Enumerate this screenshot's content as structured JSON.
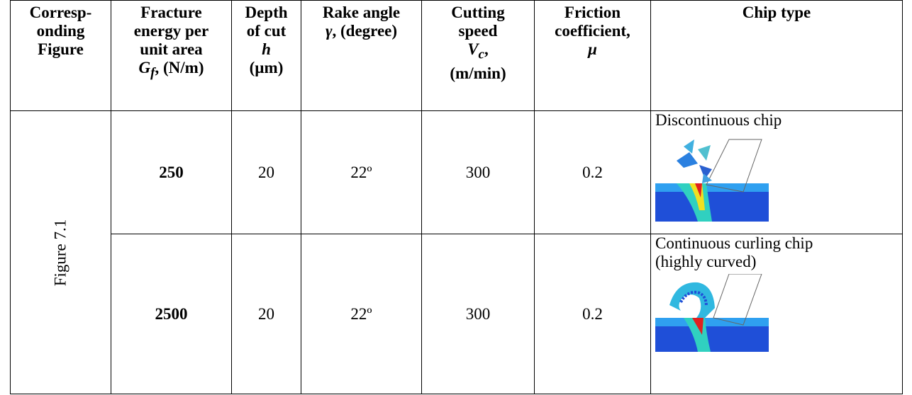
{
  "table": {
    "header": [
      [
        "Corresp-",
        "onding",
        "Figure"
      ],
      [
        "Fracture",
        "energy per",
        "unit area",
        "G",
        "f",
        ", (N/m)"
      ],
      [
        "Depth",
        "of cut",
        "h",
        "(µm)"
      ],
      [
        "Rake angle",
        "γ",
        ", (degree)"
      ],
      [
        "Cutting",
        "speed",
        "V",
        "c",
        ",",
        "(m/min)"
      ],
      [
        "Friction",
        "coefficient,",
        "μ"
      ],
      [
        "Chip type"
      ]
    ],
    "figure": "Figure 7.1",
    "rows": [
      [
        250,
        20,
        "22º",
        300,
        0.2,
        "Discontinuous chip"
      ],
      [
        2500,
        20,
        "22º",
        300,
        0.2,
        "Continuous curling chip (highly curved)"
      ]
    ]
  }
}
